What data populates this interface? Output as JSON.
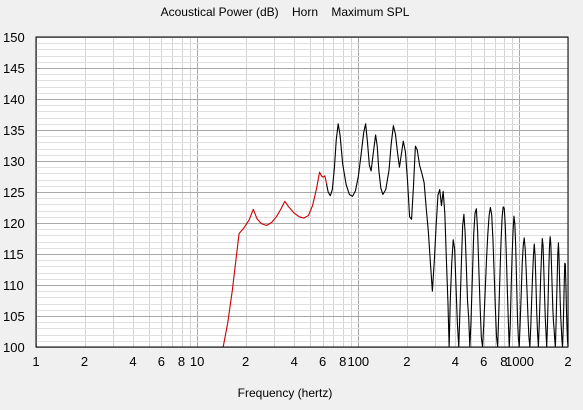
{
  "chart_data": {
    "type": "line",
    "title": "Acoustical Power (dB)    Horn    Maximum SPL",
    "xlabel": "Frequency (hertz)",
    "ylabel": "",
    "x_scale": "log",
    "xlim": [
      1,
      2000
    ],
    "ylim": [
      100,
      150
    ],
    "grid": true,
    "y_ticks": [
      100,
      105,
      110,
      115,
      120,
      125,
      130,
      135,
      140,
      145,
      150
    ],
    "x_ticks": [
      {
        "value": 1,
        "label": "1"
      },
      {
        "value": 2,
        "label": "2"
      },
      {
        "value": 4,
        "label": "4"
      },
      {
        "value": 6,
        "label": "6"
      },
      {
        "value": 8,
        "label": "8"
      },
      {
        "value": 10,
        "label": "10"
      },
      {
        "value": 20,
        "label": "2"
      },
      {
        "value": 40,
        "label": "4"
      },
      {
        "value": 60,
        "label": "6"
      },
      {
        "value": 80,
        "label": "8"
      },
      {
        "value": 100,
        "label": "100"
      },
      {
        "value": 200,
        "label": "2"
      },
      {
        "value": 400,
        "label": "4"
      },
      {
        "value": 600,
        "label": "6"
      },
      {
        "value": 800,
        "label": "8"
      },
      {
        "value": 1000,
        "label": "1000"
      },
      {
        "value": 2000,
        "label": "2"
      }
    ],
    "series": [
      {
        "color": "#cc0000",
        "points": [
          [
            14.5,
            100
          ],
          [
            15.5,
            104
          ],
          [
            16.5,
            109
          ],
          [
            17.3,
            113.5
          ],
          [
            18.2,
            118.3
          ],
          [
            19.5,
            119.2
          ],
          [
            21,
            120.5
          ],
          [
            22.3,
            122.2
          ],
          [
            23.5,
            120.7
          ],
          [
            25,
            119.9
          ],
          [
            27,
            119.6
          ],
          [
            29,
            120.1
          ],
          [
            31,
            121
          ],
          [
            33,
            122.2
          ],
          [
            35,
            123.5
          ],
          [
            37,
            122.6
          ],
          [
            40,
            121.6
          ],
          [
            43,
            121
          ],
          [
            46,
            120.8
          ],
          [
            49,
            121.2
          ],
          [
            52,
            122.8
          ],
          [
            55,
            125.5
          ],
          [
            57.5,
            128.2
          ],
          [
            59,
            127.6
          ],
          [
            60.5,
            127.4
          ],
          [
            62,
            127.6
          ],
          [
            63.5,
            126.3
          ]
        ]
      },
      {
        "color": "#000000",
        "points": [
          [
            63.5,
            126.3
          ],
          [
            65,
            125
          ],
          [
            67,
            124.4
          ],
          [
            69,
            125.4
          ],
          [
            71,
            128.8
          ],
          [
            73,
            133.5
          ],
          [
            75,
            136
          ],
          [
            77,
            134.2
          ],
          [
            80,
            129.5
          ],
          [
            84,
            126.2
          ],
          [
            88,
            124.6
          ],
          [
            92,
            124.3
          ],
          [
            96,
            125.2
          ],
          [
            100,
            127.5
          ],
          [
            104,
            131
          ],
          [
            108,
            134.6
          ],
          [
            111,
            136
          ],
          [
            114,
            133
          ],
          [
            117,
            129.4
          ],
          [
            120,
            128.4
          ],
          [
            124,
            131.4
          ],
          [
            128,
            134.2
          ],
          [
            131,
            132.4
          ],
          [
            134,
            128.5
          ],
          [
            138,
            125.6
          ],
          [
            142,
            124.6
          ],
          [
            148,
            125.4
          ],
          [
            155,
            128.5
          ],
          [
            160,
            132.8
          ],
          [
            165,
            135.7
          ],
          [
            170,
            134.3
          ],
          [
            175,
            131.4
          ],
          [
            180,
            129
          ],
          [
            185,
            131.1
          ],
          [
            190,
            133.2
          ],
          [
            196,
            131.5
          ],
          [
            202,
            126.8
          ],
          [
            208,
            121
          ],
          [
            214,
            120.6
          ],
          [
            220,
            126
          ],
          [
            226,
            132.4
          ],
          [
            232,
            131.8
          ],
          [
            240,
            129.3
          ],
          [
            248,
            128
          ],
          [
            256,
            126.5
          ],
          [
            264,
            122.3
          ],
          [
            272,
            118.6
          ],
          [
            280,
            113.6
          ],
          [
            288,
            109
          ],
          [
            296,
            113.8
          ],
          [
            304,
            119.6
          ],
          [
            312,
            124.5
          ],
          [
            320,
            125.4
          ],
          [
            328,
            122.8
          ],
          [
            336,
            125.1
          ],
          [
            344,
            121.6
          ],
          [
            352,
            114
          ],
          [
            360,
            107
          ],
          [
            366,
            100
          ],
          [
            372,
            107.5
          ],
          [
            380,
            113.6
          ],
          [
            388,
            117.3
          ],
          [
            396,
            115.8
          ],
          [
            404,
            109.5
          ],
          [
            412,
            103.7
          ],
          [
            420,
            100
          ],
          [
            428,
            106.6
          ],
          [
            436,
            113.5
          ],
          [
            444,
            119.6
          ],
          [
            452,
            121.4
          ],
          [
            460,
            118.4
          ],
          [
            468,
            113
          ],
          [
            476,
            107.4
          ],
          [
            484,
            104.7
          ],
          [
            492,
            100
          ],
          [
            500,
            104
          ],
          [
            510,
            111.2
          ],
          [
            520,
            118.3
          ],
          [
            530,
            121.6
          ],
          [
            540,
            122.3
          ],
          [
            550,
            118.6
          ],
          [
            560,
            112.2
          ],
          [
            570,
            106.4
          ],
          [
            580,
            101.5
          ],
          [
            590,
            100
          ],
          [
            600,
            103.5
          ],
          [
            612,
            108.8
          ],
          [
            624,
            114
          ],
          [
            636,
            118.2
          ],
          [
            648,
            121.2
          ],
          [
            660,
            122.5
          ],
          [
            672,
            121.4
          ],
          [
            684,
            117.5
          ],
          [
            696,
            112
          ],
          [
            708,
            106.5
          ],
          [
            720,
            101.7
          ],
          [
            732,
            100
          ],
          [
            744,
            105.5
          ],
          [
            756,
            111.4
          ],
          [
            768,
            116.9
          ],
          [
            780,
            120.9
          ],
          [
            792,
            122.6
          ],
          [
            804,
            122.4
          ],
          [
            816,
            119.7
          ],
          [
            828,
            115
          ],
          [
            840,
            109.5
          ],
          [
            852,
            104.5
          ],
          [
            864,
            100
          ],
          [
            876,
            103.5
          ],
          [
            888,
            109.6
          ],
          [
            900,
            114.8
          ],
          [
            912,
            118.7
          ],
          [
            924,
            121.1
          ],
          [
            936,
            119.8
          ],
          [
            948,
            116
          ],
          [
            960,
            110.2
          ],
          [
            972,
            104.6
          ],
          [
            984,
            101.5
          ],
          [
            996,
            100
          ],
          [
            1010,
            104
          ],
          [
            1025,
            108.6
          ],
          [
            1040,
            113.5
          ],
          [
            1055,
            116.4
          ],
          [
            1070,
            117.6
          ],
          [
            1085,
            115.8
          ],
          [
            1100,
            112.4
          ],
          [
            1115,
            108.7
          ],
          [
            1130,
            104.6
          ],
          [
            1145,
            101.5
          ],
          [
            1160,
            100
          ],
          [
            1175,
            103.3
          ],
          [
            1190,
            107.5
          ],
          [
            1205,
            111.4
          ],
          [
            1220,
            114.6
          ],
          [
            1235,
            116.6
          ],
          [
            1250,
            114.7
          ],
          [
            1265,
            110.2
          ],
          [
            1280,
            105.4
          ],
          [
            1295,
            102.2
          ],
          [
            1310,
            100
          ],
          [
            1325,
            103.4
          ],
          [
            1340,
            107.4
          ],
          [
            1355,
            111.6
          ],
          [
            1370,
            114.8
          ],
          [
            1385,
            117.5
          ],
          [
            1400,
            116.4
          ],
          [
            1415,
            112.6
          ],
          [
            1430,
            108.5
          ],
          [
            1445,
            104.8
          ],
          [
            1460,
            102.4
          ],
          [
            1475,
            100
          ],
          [
            1490,
            103.2
          ],
          [
            1505,
            107.6
          ],
          [
            1520,
            112.4
          ],
          [
            1535,
            116.2
          ],
          [
            1550,
            117.8
          ],
          [
            1565,
            116.6
          ],
          [
            1580,
            113.1
          ],
          [
            1595,
            109.6
          ],
          [
            1610,
            106.2
          ],
          [
            1625,
            104.1
          ],
          [
            1640,
            102.8
          ],
          [
            1655,
            101.2
          ],
          [
            1670,
            100
          ],
          [
            1685,
            103.4
          ],
          [
            1700,
            107.6
          ],
          [
            1715,
            111.4
          ],
          [
            1730,
            115.2
          ],
          [
            1745,
            116.8
          ],
          [
            1760,
            114.3
          ],
          [
            1775,
            110.5
          ],
          [
            1790,
            107.2
          ],
          [
            1805,
            104.6
          ],
          [
            1820,
            102.8
          ],
          [
            1835,
            101
          ],
          [
            1850,
            100
          ],
          [
            1865,
            102.5
          ],
          [
            1880,
            106.2
          ],
          [
            1895,
            110.3
          ],
          [
            1910,
            113.5
          ],
          [
            1925,
            113.4
          ],
          [
            1940,
            110.2
          ],
          [
            1955,
            106.3
          ],
          [
            1970,
            103.4
          ],
          [
            1985,
            101.1
          ],
          [
            2000,
            100
          ]
        ]
      }
    ]
  }
}
